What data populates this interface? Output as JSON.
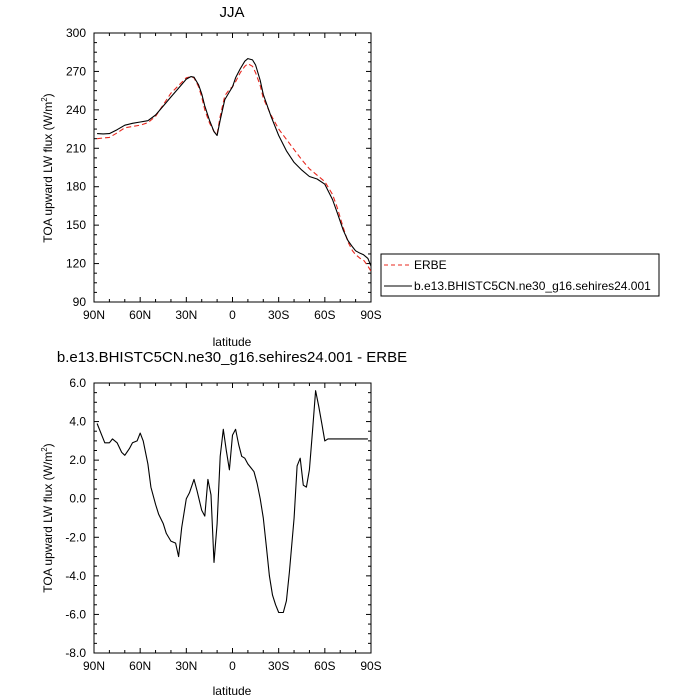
{
  "chart_data": [
    {
      "type": "line",
      "title": "JJA",
      "xlabel": "latitude",
      "ylabel_main": "TOA upward LW flux (W/m",
      "ylabel_sup": "2",
      "ylabel_close": ")",
      "xlim": [
        90,
        -90
      ],
      "ylim": [
        90,
        300
      ],
      "xticks": [
        90,
        60,
        30,
        0,
        -30,
        -60,
        -90
      ],
      "xtick_labels": [
        "90N",
        "60N",
        "30N",
        "0",
        "30S",
        "60S",
        "90S"
      ],
      "yticks": [
        90,
        120,
        150,
        180,
        210,
        240,
        270,
        300
      ],
      "ytick_labels": [
        "90",
        "120",
        "150",
        "180",
        "210",
        "240",
        "270",
        "300"
      ],
      "legend_position": "right",
      "series": [
        {
          "name": "ERBE",
          "color": "#e8281f",
          "dash": "dashed",
          "x": [
            88,
            84,
            80,
            75,
            70,
            65,
            60,
            55,
            50,
            45,
            40,
            35,
            30,
            27,
            25,
            22,
            20,
            18,
            15,
            12,
            10,
            8,
            5,
            2,
            0,
            -2,
            -5,
            -8,
            -10,
            -13,
            -15,
            -18,
            -20,
            -25,
            -30,
            -35,
            -40,
            -45,
            -50,
            -55,
            -60,
            -65,
            -68,
            -70,
            -72,
            -75,
            -78,
            -80,
            -83,
            -85,
            -88,
            -90
          ],
          "y": [
            217.5,
            218,
            218.5,
            222,
            226,
            227,
            228,
            230,
            235,
            244,
            253,
            259,
            265,
            266,
            265,
            258,
            250,
            240,
            230,
            223,
            221,
            235,
            251,
            256,
            258,
            262,
            269,
            274,
            276,
            274,
            269,
            259,
            249,
            236,
            225,
            217,
            209,
            201,
            194,
            189,
            184,
            174,
            164,
            156,
            148,
            137,
            130,
            127,
            124,
            123,
            118,
            114
          ]
        },
        {
          "name": "b.e13.BHISTC5CN.ne30_g16.sehires24.001",
          "color": "#000000",
          "dash": "solid",
          "x": [
            88,
            84,
            80,
            75,
            70,
            65,
            60,
            55,
            50,
            45,
            40,
            35,
            30,
            27,
            25,
            22,
            20,
            18,
            15,
            12,
            10,
            8,
            5,
            2,
            0,
            -2,
            -5,
            -8,
            -10,
            -13,
            -15,
            -18,
            -20,
            -25,
            -30,
            -35,
            -40,
            -45,
            -50,
            -55,
            -60,
            -65,
            -68,
            -70,
            -72,
            -75,
            -78,
            -80,
            -83,
            -85,
            -88,
            -90
          ],
          "y": [
            221.5,
            221.2,
            221.5,
            224.5,
            228,
            229.5,
            230.5,
            231.5,
            236,
            243,
            250,
            257,
            264,
            266,
            265.5,
            259.5,
            252.5,
            243,
            232,
            223,
            220,
            232,
            248,
            254,
            258,
            265,
            272,
            278,
            280,
            279,
            275,
            263,
            252,
            235,
            220,
            208,
            199,
            193,
            188,
            186,
            182,
            170,
            160,
            153,
            146,
            138,
            133,
            130,
            128,
            127,
            124,
            118
          ]
        }
      ]
    },
    {
      "type": "line",
      "title": "b.e13.BHISTC5CN.ne30_g16.sehires24.001 - ERBE",
      "xlabel": "latitude",
      "ylabel_main": "TOA upward LW flux (W/m",
      "ylabel_sup": "2",
      "ylabel_close": ")",
      "xlim": [
        90,
        -90
      ],
      "ylim": [
        -8,
        6
      ],
      "xticks": [
        90,
        60,
        30,
        0,
        -30,
        -60,
        -90
      ],
      "xtick_labels": [
        "90N",
        "60N",
        "30N",
        "0",
        "30S",
        "60S",
        "90S"
      ],
      "yticks": [
        -8,
        -6,
        -4,
        -2,
        0,
        2,
        4,
        6
      ],
      "ytick_labels": [
        "-8.0",
        "-6.0",
        "-4.0",
        "-2.0",
        "0.0",
        "2.0",
        "4.0",
        "6.0"
      ],
      "series": [
        {
          "color": "#000000",
          "dash": "solid",
          "x": [
            88,
            85,
            83,
            80,
            78,
            75,
            72,
            70,
            67,
            65,
            62,
            60,
            58,
            55,
            53,
            50,
            48,
            45,
            43,
            40,
            37,
            35,
            33,
            30,
            28,
            25,
            23,
            20,
            18,
            16,
            14,
            12,
            10,
            8,
            6,
            4,
            2,
            0,
            -2,
            -4,
            -6,
            -8,
            -10,
            -12,
            -14,
            -16,
            -18,
            -20,
            -22,
            -24,
            -26,
            -28,
            -30,
            -33,
            -35,
            -37,
            -40,
            -42,
            -44,
            -46,
            -48,
            -50,
            -52,
            -54,
            -56,
            -58,
            -60,
            -62,
            -64,
            -66,
            -68,
            -70,
            -72,
            -75,
            -78,
            -80,
            -82,
            -84,
            -86,
            -88
          ],
          "y": [
            3.9,
            3.3,
            2.9,
            2.9,
            3.1,
            2.9,
            2.4,
            2.25,
            2.6,
            2.9,
            3.0,
            3.4,
            3.0,
            1.8,
            0.6,
            -0.3,
            -0.8,
            -1.3,
            -1.8,
            -2.2,
            -2.3,
            -3.0,
            -1.5,
            0.0,
            0.3,
            1.0,
            0.4,
            -0.6,
            -0.9,
            1.0,
            0.2,
            -3.3,
            -1.3,
            2.2,
            3.6,
            2.5,
            1.5,
            3.3,
            3.6,
            2.8,
            2.2,
            2.1,
            1.8,
            1.6,
            1.4,
            0.8,
            0.0,
            -1.0,
            -2.5,
            -4.0,
            -5.0,
            -5.5,
            -5.9,
            -5.9,
            -5.3,
            -3.8,
            -1.0,
            1.7,
            2.1,
            0.7,
            0.6,
            1.5,
            3.5,
            5.6,
            4.8,
            3.9,
            3.0,
            3.1,
            3.1,
            3.1,
            3.1,
            3.1,
            3.1,
            3.1,
            3.1,
            3.1,
            3.1,
            3.1,
            3.1,
            3.1
          ]
        }
      ]
    }
  ]
}
